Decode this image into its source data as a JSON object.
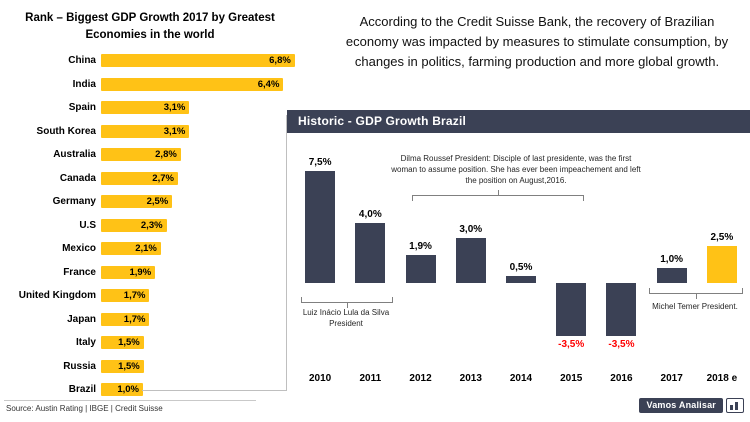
{
  "colors": {
    "gold": "#FFC216",
    "navy": "#3B4155",
    "negative_red": "#FF0000",
    "callout_gray": "#BFBFBF"
  },
  "left_chart": {
    "title_line1": "Rank – Biggest GDP Growth 2017 by Greatest",
    "title_line2": "Economies in the world",
    "source": "Source: Austin Rating | IBGE | Credit Suisse"
  },
  "intro": {
    "text": "According to the Credit Suisse Bank, the recovery of Brazilian economy was impacted by measures to stimulate consumption, by changes in politics, farming production and more global growth."
  },
  "right_chart": {
    "header": "Historic - GDP Growth Brazil",
    "annotations": {
      "dilma": "Dilma Roussef President: Disciple of last presidente, was the first woman to assume position. She has ever been impeachement and left the position on August,2016.",
      "lula": "Luiz Inácio Lula da Silva President",
      "temer": "Michel Temer President."
    }
  },
  "brand": {
    "label": "Vamos Analisar"
  },
  "chart_data": [
    {
      "type": "bar",
      "orientation": "horizontal",
      "title": "Rank – Biggest GDP Growth 2017 by Greatest Economies in the world",
      "categories": [
        "China",
        "India",
        "Spain",
        "South Korea",
        "Australia",
        "Canada",
        "Germany",
        "U.S",
        "Mexico",
        "France",
        "United Kingdom",
        "Japan",
        "Italy",
        "Russia",
        "Brazil"
      ],
      "values": [
        6.8,
        6.4,
        3.1,
        3.1,
        2.8,
        2.7,
        2.5,
        2.3,
        2.1,
        1.9,
        1.7,
        1.7,
        1.5,
        1.5,
        1.0
      ],
      "value_labels": [
        "6,8%",
        "6,4%",
        "3,1%",
        "3,1%",
        "2,8%",
        "2,7%",
        "2,5%",
        "2,3%",
        "2,1%",
        "1,9%",
        "1,7%",
        "1,7%",
        "1,5%",
        "1,5%",
        "1,0%"
      ],
      "xlim": [
        0,
        7
      ],
      "bar_color": "#FFC216",
      "grid": false,
      "legend": false
    },
    {
      "type": "bar",
      "orientation": "vertical",
      "title": "Historic - GDP Growth Brazil",
      "categories": [
        "2010",
        "2011",
        "2012",
        "2013",
        "2014",
        "2015",
        "2016",
        "2017",
        "2018 e"
      ],
      "values": [
        7.5,
        4.0,
        1.9,
        3.0,
        0.5,
        -3.5,
        -3.5,
        1.0,
        2.5
      ],
      "value_labels": [
        "7,5%",
        "4,0%",
        "1,9%",
        "3,0%",
        "0,5%",
        "-3,5%",
        "-3,5%",
        "1,0%",
        "2,5%"
      ],
      "ylim": [
        -4.5,
        8
      ],
      "bar_colors": [
        "#3B4155",
        "#3B4155",
        "#3B4155",
        "#3B4155",
        "#3B4155",
        "#3B4155",
        "#3B4155",
        "#3B4155",
        "#FFC216"
      ],
      "negative_label_color": "#FF0000",
      "grid": false,
      "legend": false
    }
  ]
}
